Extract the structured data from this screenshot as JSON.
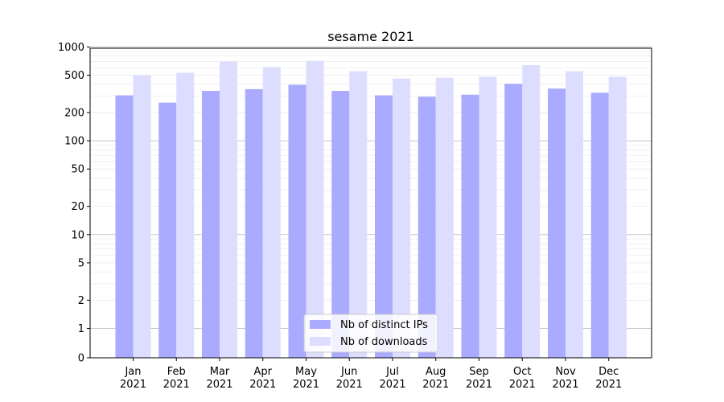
{
  "chart_data": {
    "type": "bar",
    "title": "sesame 2021",
    "xlabel": "",
    "ylabel": "",
    "y_scale": "symlog",
    "ylim": [
      0,
      1300
    ],
    "y_ticks": [
      0,
      1,
      2,
      5,
      10,
      20,
      50,
      100,
      200,
      500,
      1000
    ],
    "y_tick_labels": [
      "0",
      "1",
      "2",
      "5",
      "10",
      "20",
      "50",
      "100",
      "200",
      "500",
      "1000"
    ],
    "categories": [
      {
        "month": "Jan",
        "year": "2021"
      },
      {
        "month": "Feb",
        "year": "2021"
      },
      {
        "month": "Mar",
        "year": "2021"
      },
      {
        "month": "Apr",
        "year": "2021"
      },
      {
        "month": "May",
        "year": "2021"
      },
      {
        "month": "Jun",
        "year": "2021"
      },
      {
        "month": "Jul",
        "year": "2021"
      },
      {
        "month": "Aug",
        "year": "2021"
      },
      {
        "month": "Sep",
        "year": "2021"
      },
      {
        "month": "Oct",
        "year": "2021"
      },
      {
        "month": "Nov",
        "year": "2021"
      },
      {
        "month": "Dec",
        "year": "2021"
      }
    ],
    "series": [
      {
        "name": "Nb of distinct IPs",
        "color": "#aaaaff",
        "values": [
          305,
          255,
          340,
          355,
          395,
          340,
          305,
          295,
          310,
          405,
          360,
          325
        ]
      },
      {
        "name": "Nb of downloads",
        "color": "#ddddff",
        "values": [
          500,
          530,
          700,
          610,
          710,
          550,
          460,
          470,
          480,
          640,
          550,
          480
        ]
      }
    ],
    "grid": true,
    "legend": {
      "position": "bottom-center"
    }
  }
}
